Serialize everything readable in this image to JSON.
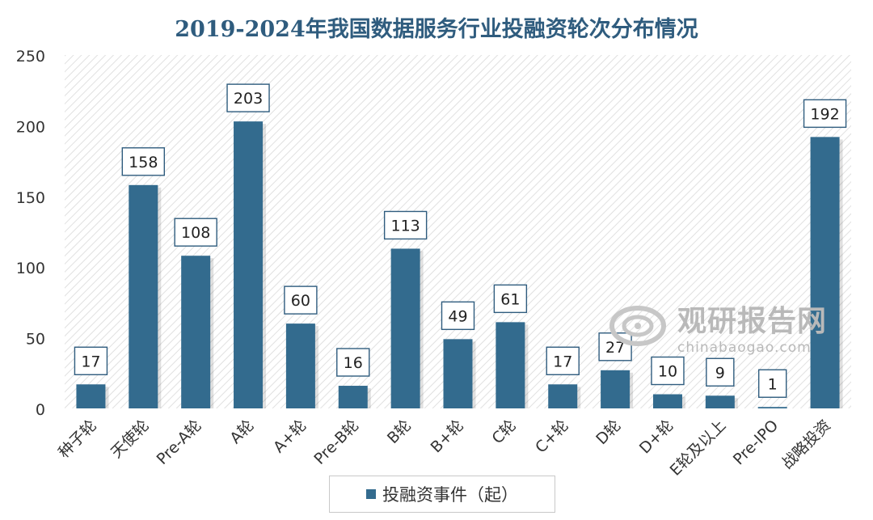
{
  "chart_data": {
    "type": "bar",
    "title": "2019-2024年我国数据服务行业投融资轮次分布情况",
    "categories": [
      "种子轮",
      "天使轮",
      "Pre-A轮",
      "A轮",
      "A+轮",
      "Pre-B轮",
      "B轮",
      "B+轮",
      "C轮",
      "C+轮",
      "D轮",
      "D+轮",
      "E轮及以上",
      "Pre-IPO",
      "战略投资"
    ],
    "series": [
      {
        "name": "投融资事件（起）",
        "values": [
          17,
          158,
          108,
          203,
          60,
          16,
          113,
          49,
          61,
          17,
          27,
          10,
          9,
          1,
          192
        ]
      }
    ],
    "ylim": [
      0,
      250
    ],
    "yticks": [
      0,
      50,
      100,
      150,
      200,
      250
    ],
    "xlabel": "",
    "ylabel": "",
    "legend": "bottom",
    "grid": false,
    "bar_color": "#336b8e"
  },
  "watermark": {
    "name_cn": "观研报告网",
    "site": "chinabaogao.com"
  }
}
